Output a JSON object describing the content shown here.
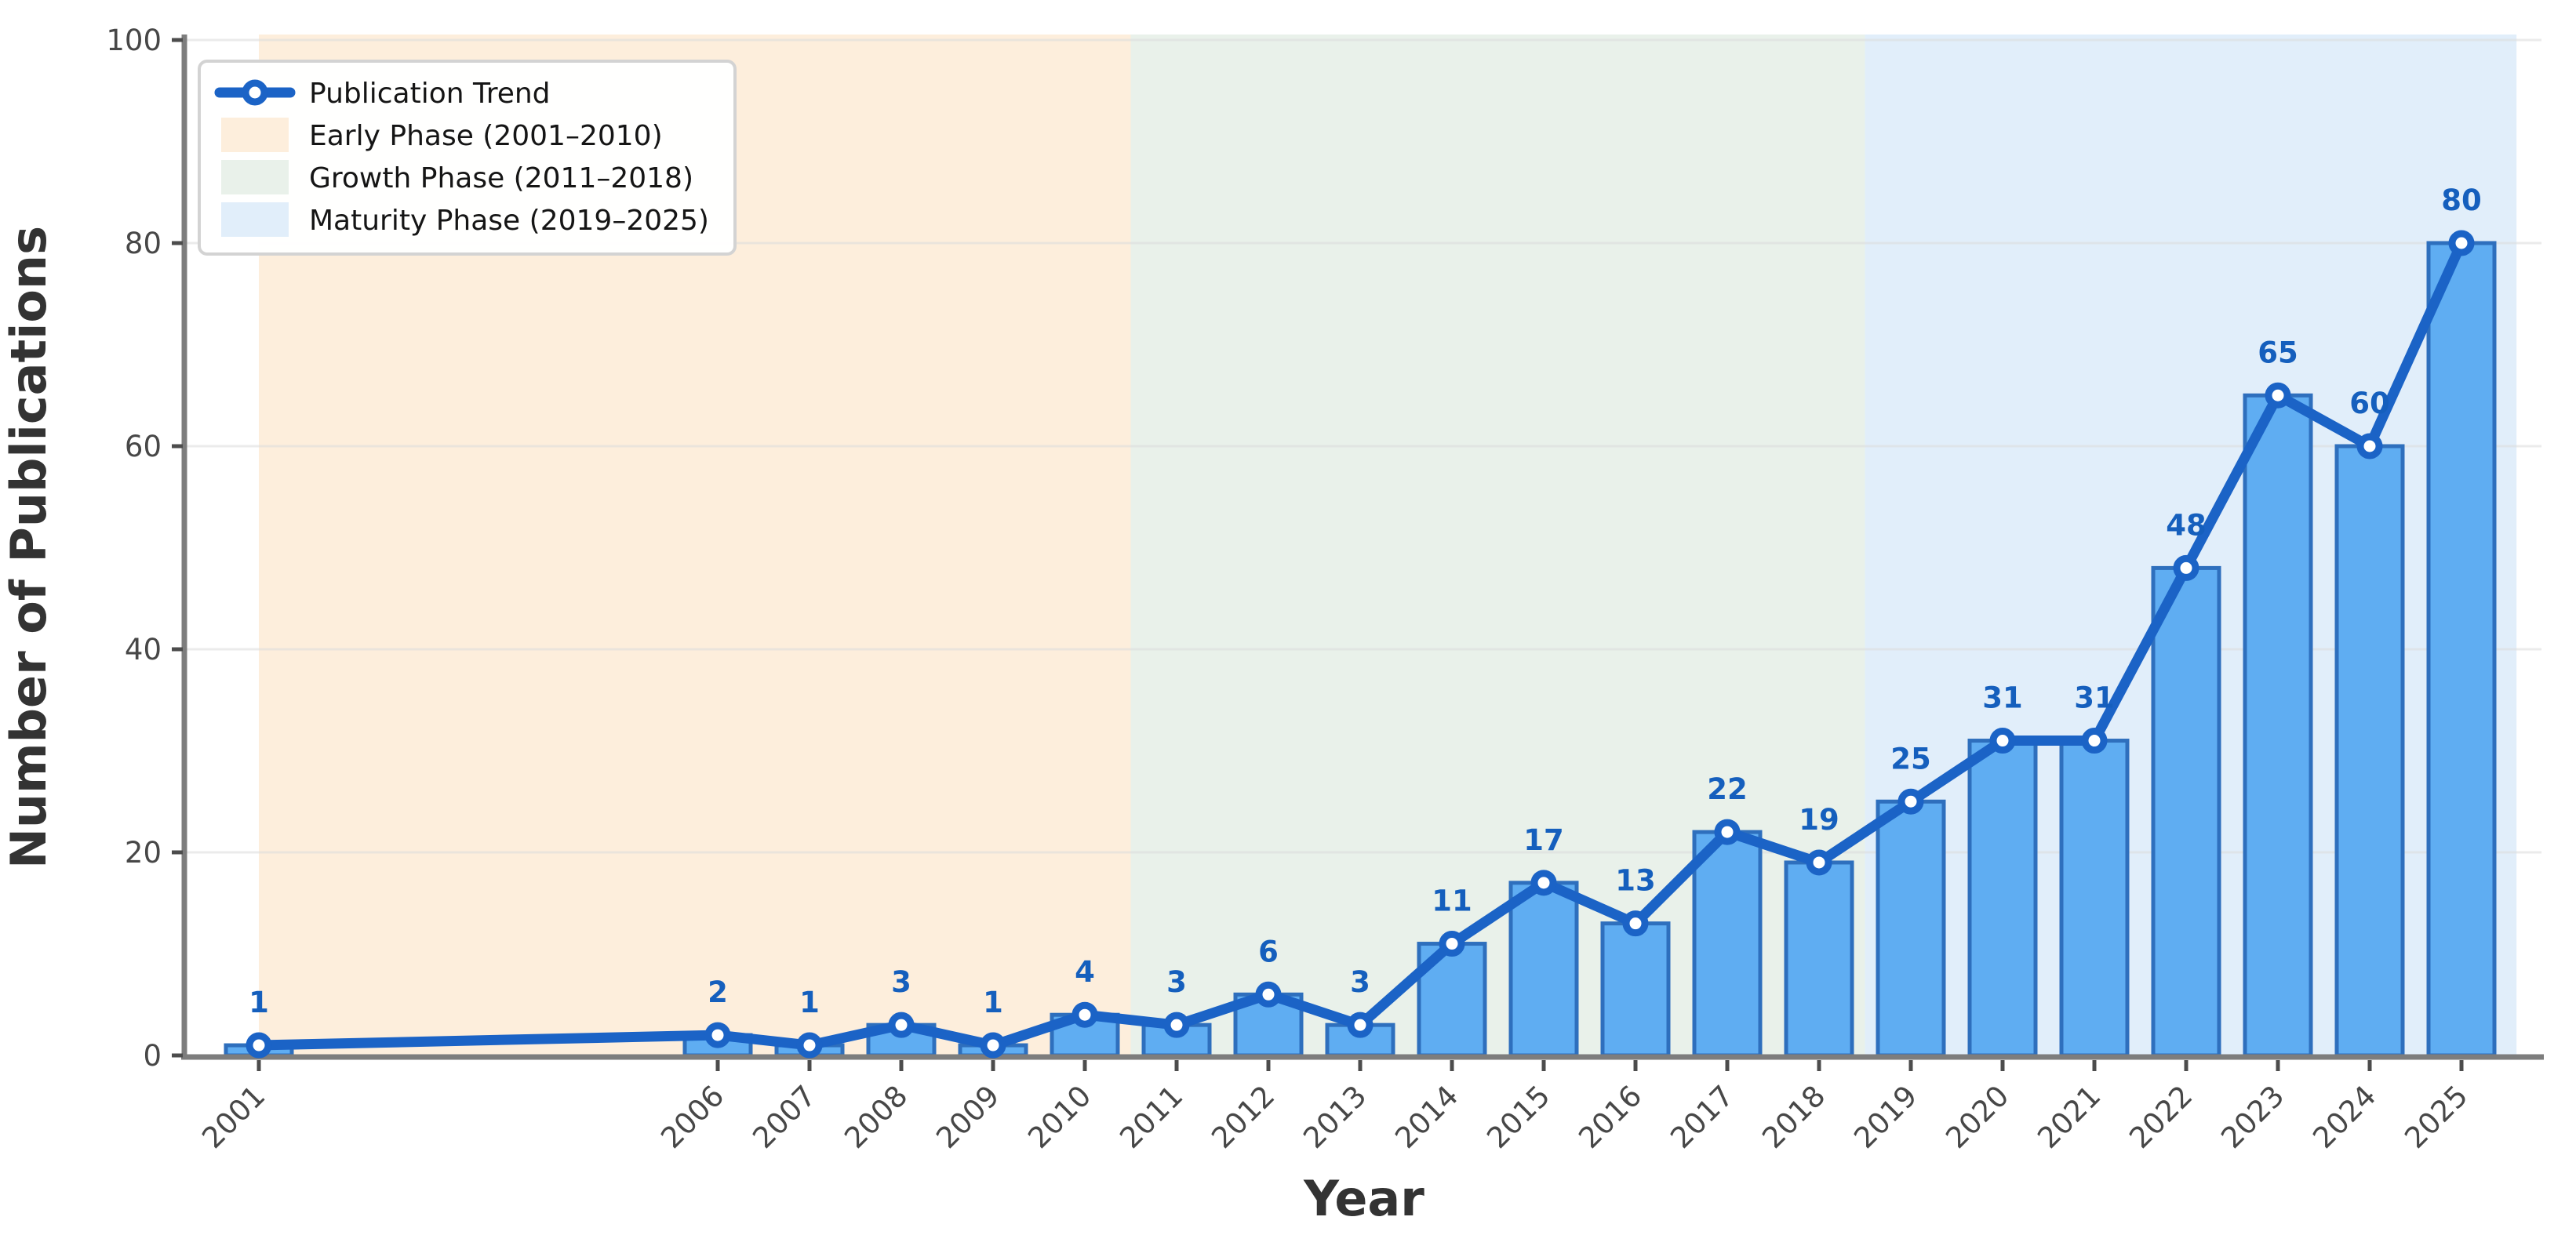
{
  "chart_data": {
    "type": "bar",
    "overlays": [
      "line",
      "markers",
      "value_labels"
    ],
    "xlabel": "Year",
    "ylabel": "Number of Publications",
    "ylim": [
      0,
      100
    ],
    "yticks": [
      0,
      20,
      40,
      60,
      80,
      100
    ],
    "grid": true,
    "x": [
      2001,
      2006,
      2007,
      2008,
      2009,
      2010,
      2011,
      2012,
      2013,
      2014,
      2015,
      2016,
      2017,
      2018,
      2019,
      2020,
      2021,
      2022,
      2023,
      2024,
      2025
    ],
    "series": [
      {
        "name": "Publication Trend",
        "values": [
          1,
          2,
          1,
          3,
          1,
          4,
          3,
          6,
          3,
          11,
          17,
          13,
          22,
          19,
          25,
          31,
          31,
          48,
          65,
          60,
          80
        ]
      }
    ],
    "phases": [
      {
        "label": "Early Phase (2001–2010)",
        "start": 2001,
        "end": 2010.5,
        "color": "#fdeedc"
      },
      {
        "label": "Growth Phase (2011–2018)",
        "start": 2010.5,
        "end": 2018.5,
        "color": "#e9f1ea"
      },
      {
        "label": "Maturity Phase (2019–2025)",
        "start": 2018.5,
        "end": 2025.6,
        "color": "#e1eefa"
      }
    ],
    "legend": {
      "position": "upper left",
      "entries": [
        {
          "type": "line",
          "label": "Publication Trend"
        },
        {
          "type": "patch",
          "label": "Early Phase (2001–2010)",
          "color": "#fdeedc"
        },
        {
          "type": "patch",
          "label": "Growth Phase (2011–2018)",
          "color": "#e9f1ea"
        },
        {
          "type": "patch",
          "label": "Maturity Phase (2019–2025)",
          "color": "#e1eefa"
        }
      ]
    },
    "colors": {
      "bar_fill": "#5fadf2",
      "bar_edge": "#2e6fbd",
      "line": "#1b63c6",
      "marker_face": "#ffffff",
      "value_label": "#155fbd",
      "axis_spine": "#7d7d7d",
      "tick_mark": "#4c4c4c",
      "tick_label": "#474747",
      "axis_title": "#333333",
      "grid_line": "#dcdcdc",
      "legend_border": "#d3d3d3",
      "legend_text": "#151515"
    }
  }
}
